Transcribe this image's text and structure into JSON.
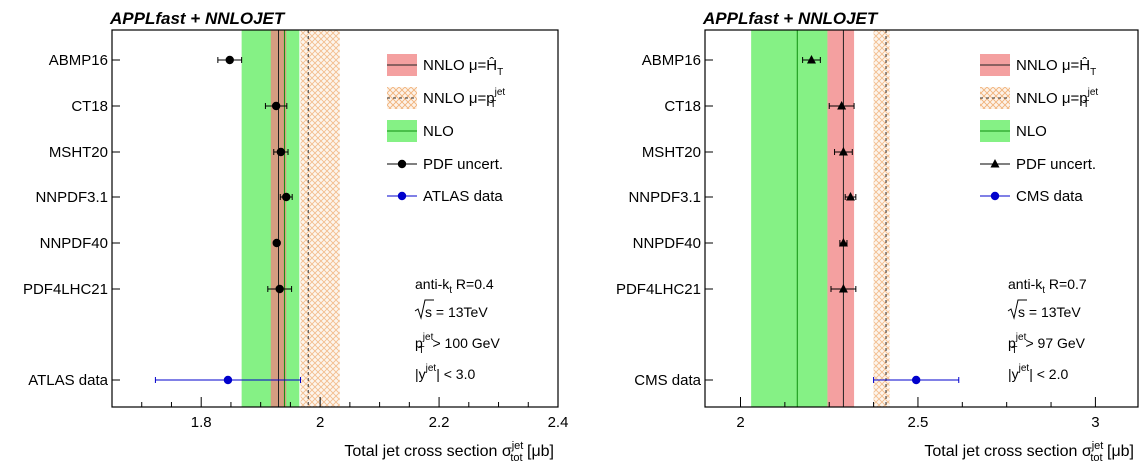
{
  "chart_data": [
    {
      "type": "scatter",
      "title": "APPLfast + NNLOJET",
      "xlabel": "Total jet cross section",
      "xlabel_symbol": "σ",
      "xlabel_sup": "jet",
      "xlabel_sub": "tot",
      "xlabel_unit": "[μb]",
      "xlim": [
        1.65,
        2.4
      ],
      "xticks": [
        1.8,
        2.0,
        2.2,
        2.4
      ],
      "xtick_labels": [
        "1.8",
        "2",
        "2.2",
        "2.4"
      ],
      "categories": [
        "ABMP16",
        "CT18",
        "MSHT20",
        "NNPDF3.1",
        "NNPDF40",
        "PDF4LHC21",
        "ATLAS data"
      ],
      "bands": {
        "nnlo_ht": {
          "center": 1.93,
          "lo": 1.917,
          "hi": 1.943,
          "color": "#f08080"
        },
        "nnlo_pt": {
          "center": 1.98,
          "lo": 1.967,
          "hi": 2.033,
          "color": "#f5c29a"
        },
        "nlo": {
          "center": 1.94,
          "lo": 1.868,
          "hi": 1.965,
          "color": "#66ee66"
        }
      },
      "pdf_points": [
        {
          "name": "ABMP16",
          "value": 1.848,
          "err_lo": 0.02,
          "err_hi": 0.02
        },
        {
          "name": "CT18",
          "value": 1.926,
          "err_lo": 0.018,
          "err_hi": 0.018
        },
        {
          "name": "MSHT20",
          "value": 1.934,
          "err_lo": 0.012,
          "err_hi": 0.012
        },
        {
          "name": "NNPDF3.1",
          "value": 1.943,
          "err_lo": 0.01,
          "err_hi": 0.01
        },
        {
          "name": "NNPDF40",
          "value": 1.927,
          "err_lo": 0.004,
          "err_hi": 0.004
        },
        {
          "name": "PDF4LHC21",
          "value": 1.932,
          "err_lo": 0.02,
          "err_hi": 0.02
        }
      ],
      "data_point": {
        "name": "ATLAS data",
        "value": 1.845,
        "err_lo": 0.122,
        "err_hi": 0.122,
        "color": "#0000cc"
      },
      "point_marker": "circle",
      "legend": {
        "position": "top-right",
        "nnlo_ht": "NNLO μ=Ĥ",
        "nnlo_ht_sub": "T",
        "nnlo_pt": "NNLO μ=p",
        "nnlo_pt_sup": "jet",
        "nnlo_pt_sub": "T",
        "nlo": "NLO",
        "pdf": "PDF uncert.",
        "data": "ATLAS data"
      },
      "annotations": {
        "algo": "anti-k",
        "algo_sub": "t",
        "algo_r": "R=0.4",
        "energy": "s = 13TeV",
        "ptcut_main": "p",
        "ptcut_sup": "jet",
        "ptcut_sub": "T",
        "ptcut_val": "> 100 GeV",
        "ycut_pre": "|y",
        "ycut_sup": "jet",
        "ycut_val": "| < 3.0"
      }
    },
    {
      "type": "scatter",
      "title": "APPLfast + NNLOJET",
      "xlabel": "Total jet cross section",
      "xlabel_symbol": "σ",
      "xlabel_sup": "jet",
      "xlabel_sub": "tot",
      "xlabel_unit": "[μb]",
      "xlim": [
        1.9,
        3.12
      ],
      "xticks": [
        2.0,
        2.5,
        3.0
      ],
      "xtick_labels": [
        "2",
        "2.5",
        "3"
      ],
      "categories": [
        "ABMP16",
        "CT18",
        "MSHT20",
        "NNPDF3.1",
        "NNPDF40",
        "PDF4LHC21",
        "CMS data"
      ],
      "bands": {
        "nnlo_ht": {
          "center": 2.29,
          "lo": 2.245,
          "hi": 2.32,
          "color": "#f08080"
        },
        "nnlo_pt": {
          "center": 2.41,
          "lo": 2.375,
          "hi": 2.42,
          "color": "#f5c29a"
        },
        "nlo": {
          "center": 2.16,
          "lo": 2.03,
          "hi": 2.245,
          "color": "#66ee66"
        }
      },
      "pdf_points": [
        {
          "name": "ABMP16",
          "value": 2.2,
          "err_lo": 0.025,
          "err_hi": 0.025
        },
        {
          "name": "CT18",
          "value": 2.285,
          "err_lo": 0.035,
          "err_hi": 0.035
        },
        {
          "name": "MSHT20",
          "value": 2.29,
          "err_lo": 0.025,
          "err_hi": 0.025
        },
        {
          "name": "NNPDF3.1",
          "value": 2.31,
          "err_lo": 0.015,
          "err_hi": 0.015
        },
        {
          "name": "NNPDF40",
          "value": 2.29,
          "err_lo": 0.01,
          "err_hi": 0.01
        },
        {
          "name": "PDF4LHC21",
          "value": 2.29,
          "err_lo": 0.035,
          "err_hi": 0.035
        }
      ],
      "data_point": {
        "name": "CMS data",
        "value": 2.495,
        "err_lo": 0.12,
        "err_hi": 0.12,
        "color": "#0000cc"
      },
      "point_marker": "triangle",
      "legend": {
        "position": "top-right",
        "nnlo_ht": "NNLO μ=Ĥ",
        "nnlo_ht_sub": "T",
        "nnlo_pt": "NNLO μ=p",
        "nnlo_pt_sup": "jet",
        "nnlo_pt_sub": "T",
        "nlo": "NLO",
        "pdf": "PDF uncert.",
        "data": "CMS data"
      },
      "annotations": {
        "algo": "anti-k",
        "algo_sub": "t",
        "algo_r": "R=0.7",
        "energy": "s = 13TeV",
        "ptcut_main": "p",
        "ptcut_sup": "jet",
        "ptcut_sub": "T",
        "ptcut_val": "> 97 GeV",
        "ycut_pre": "|y",
        "ycut_sup": "jet",
        "ycut_val": "| < 2.0"
      }
    }
  ]
}
